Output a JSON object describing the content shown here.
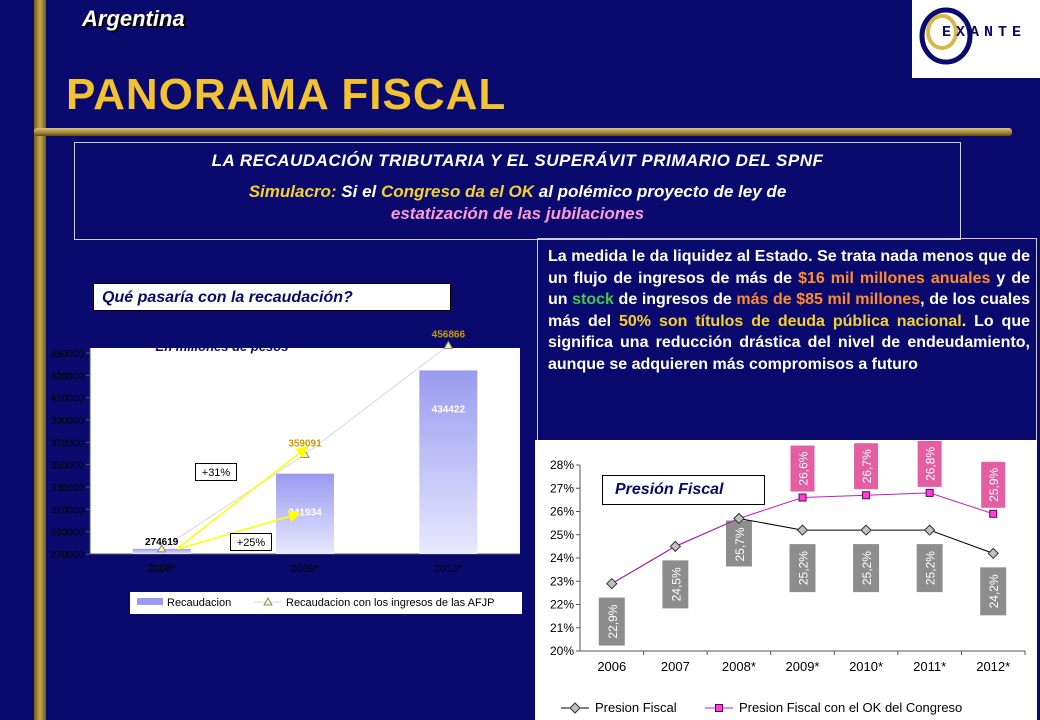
{
  "header": {
    "country": "Argentina",
    "title": "PANORAMA FISCAL",
    "logo_text": "EXANTE"
  },
  "headline": {
    "line1": "LA RECAUDACIÓN TRIBUTARIA Y EL SUPERÁVIT PRIMARIO DEL SPNF",
    "line2_a": "Simulacro:",
    "line2_b": " Si el ",
    "line2_c": "Congreso da el OK",
    "line2_d": " al polémico proyecto de ley de",
    "line3": "estatización de las jubilaciones"
  },
  "question": "Qué pasaría con la recaudación?",
  "note": {
    "t1": "La medida le da liquidez al Estado. Se trata nada menos que de un flujo de ingresos de más de ",
    "t2": "$16 mil millones anuales",
    "t3": " y de un ",
    "t4": "stock",
    "t5": " de ingresos de ",
    "t6": "más de $85 mil millones",
    "t7": ", de los cuales más del ",
    "t8": "50% son títulos de deuda pública nacional",
    "t9": ". Lo que significa una reducción drástica del nivel de endeudamiento, aunque se adquieren más compromisos a futuro"
  },
  "pf_label": "Presión Fiscal",
  "colors": {
    "bar1": "#9a9af0",
    "line2": "#f5f5a0",
    "pressure_bar": "#8d8d8d",
    "ok_bar": "#e35ea2"
  },
  "chart_data": [
    {
      "type": "bar",
      "note": "En millones de pesos",
      "categories": [
        "2008*",
        "2009*",
        "2010*"
      ],
      "series": [
        {
          "name": "Recaudacion",
          "type": "bar",
          "values": [
            274619,
            341934,
            434422
          ],
          "labels": [
            "274619",
            "341934",
            "434422"
          ]
        },
        {
          "name": "Recaudacion con los ingresos de las AFJP",
          "type": "line",
          "values": [
            274619,
            359091,
            456866
          ],
          "labels": [
            "",
            "359091",
            "456866"
          ]
        }
      ],
      "ylim": [
        270000,
        450000
      ],
      "yticks": [
        270000,
        290000,
        310000,
        330000,
        350000,
        370000,
        390000,
        410000,
        430000,
        450000
      ],
      "ytick_labels": [
        "270000",
        "290000",
        "310000",
        "330000",
        "350000",
        "370000",
        "390000",
        "410000",
        "430000",
        "450000"
      ],
      "annotations": [
        "+31%",
        "+25%"
      ],
      "legend": "bottom"
    },
    {
      "type": "line",
      "categories": [
        "2006",
        "2007",
        "2008*",
        "2009*",
        "2010*",
        "2011*",
        "2012*"
      ],
      "series": [
        {
          "name": "Presion Fiscal",
          "values": [
            22.9,
            24.5,
            25.7,
            25.2,
            25.2,
            25.2,
            24.2
          ],
          "labels": [
            "22,9%",
            "24,5%",
            "25,7%",
            "25,2%",
            "25,2%",
            "25,2%",
            "24,2%"
          ]
        },
        {
          "name": "Presion Fiscal con el OK del Congreso",
          "values": [
            22.9,
            24.5,
            25.7,
            26.6,
            26.7,
            26.8,
            25.9
          ],
          "labels": [
            "",
            "",
            "",
            "26,6%",
            "26,7%",
            "26,8%",
            "25,9%"
          ]
        }
      ],
      "ylim": [
        20,
        28
      ],
      "yticks": [
        20,
        21,
        22,
        23,
        24,
        25,
        26,
        27,
        28
      ],
      "ytick_labels": [
        "20%",
        "21%",
        "22%",
        "23%",
        "24%",
        "25%",
        "26%",
        "27%",
        "28%"
      ],
      "legend": "bottom"
    }
  ]
}
